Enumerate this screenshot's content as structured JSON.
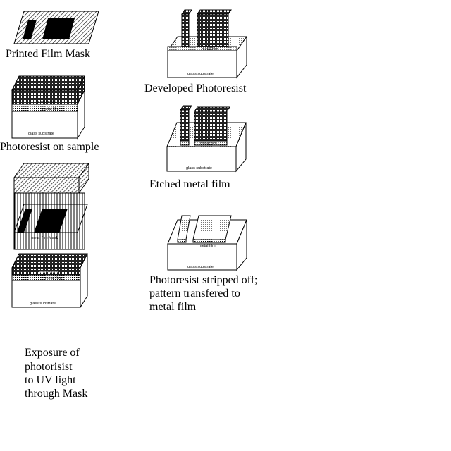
{
  "captions": {
    "printed_film_mask": "Printed Film Mask",
    "photoresist_on_sample": "Photoresist on sample",
    "exposure_line1": "Exposure of",
    "exposure_line2": "photorisist",
    "exposure_line3": "to UV light",
    "exposure_line4": "through Mask",
    "developed_photoresist": "Developed Photoresist",
    "etched_metal_film": "Etched metal film",
    "stripped_line1": "Photoresist stripped off;",
    "stripped_line2": "pattern transfered to",
    "stripped_line3": "metal film"
  },
  "labels": {
    "glass_substrate": "glass substrate",
    "metal_film": "metal film",
    "photoresist": "photoresist",
    "metal_film_mask": "metal film Mask"
  },
  "colors": {
    "ink": "#000000",
    "paper": "#ffffff",
    "resist_fill": "#555555",
    "stripped_resist_fill": "#cfcfcf"
  }
}
